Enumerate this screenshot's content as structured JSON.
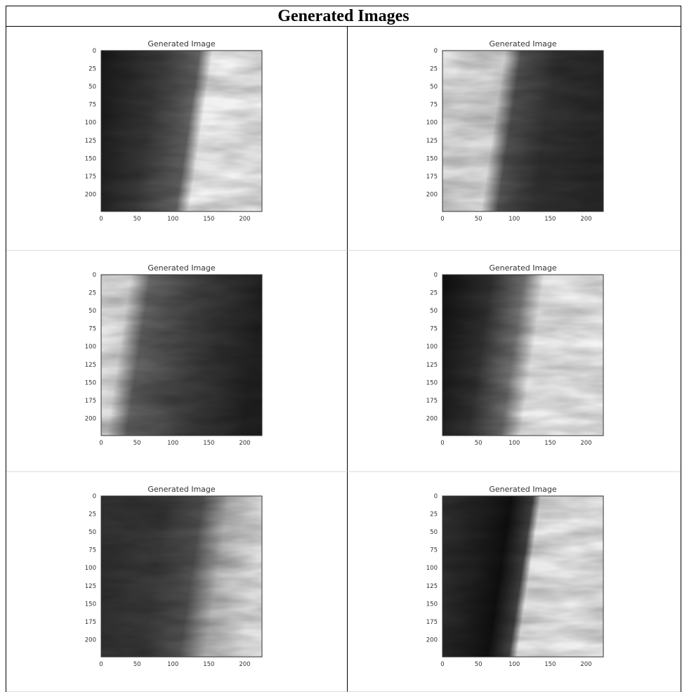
{
  "header": {
    "title": "Generated Images"
  },
  "panels": [
    {
      "title": "Generated Image",
      "xlim": [
        0,
        224
      ],
      "ylim": [
        224,
        0
      ],
      "xticks": [
        0,
        50,
        100,
        150,
        200
      ],
      "yticks": [
        0,
        25,
        50,
        75,
        100,
        125,
        150,
        175,
        200
      ]
    },
    {
      "title": "Generated Image",
      "xlim": [
        0,
        224
      ],
      "ylim": [
        224,
        0
      ],
      "xticks": [
        0,
        50,
        100,
        150,
        200
      ],
      "yticks": [
        0,
        25,
        50,
        75,
        100,
        125,
        150,
        175,
        200
      ]
    },
    {
      "title": "Generated Image",
      "xlim": [
        0,
        224
      ],
      "ylim": [
        224,
        0
      ],
      "xticks": [
        0,
        50,
        100,
        150,
        200
      ],
      "yticks": [
        0,
        25,
        50,
        75,
        100,
        125,
        150,
        175,
        200
      ]
    },
    {
      "title": "Generated Image",
      "xlim": [
        0,
        224
      ],
      "ylim": [
        224,
        0
      ],
      "xticks": [
        0,
        50,
        100,
        150,
        200
      ],
      "yticks": [
        0,
        25,
        50,
        75,
        100,
        125,
        150,
        175,
        200
      ]
    },
    {
      "title": "Generated Image",
      "xlim": [
        0,
        224
      ],
      "ylim": [
        224,
        0
      ],
      "xticks": [
        0,
        50,
        100,
        150,
        200
      ],
      "yticks": [
        0,
        25,
        50,
        75,
        100,
        125,
        150,
        175,
        200
      ]
    },
    {
      "title": "Generated Image",
      "xlim": [
        0,
        224
      ],
      "ylim": [
        224,
        0
      ],
      "xticks": [
        0,
        50,
        100,
        150,
        200
      ],
      "yticks": [
        0,
        25,
        50,
        75,
        100,
        125,
        150,
        175,
        200
      ]
    }
  ]
}
